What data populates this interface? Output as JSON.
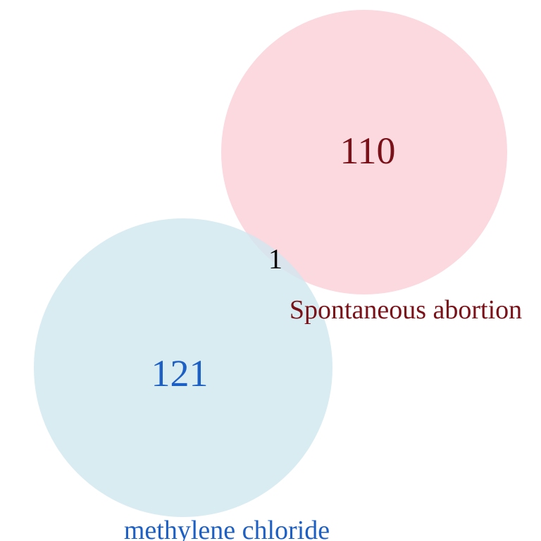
{
  "sets": [
    {
      "name": "Spontaneous abortion",
      "only_count": "110",
      "fill_color": "#fcd6dd",
      "label_color": "#7a1018"
    },
    {
      "name": "methylene chloride",
      "only_count": "121",
      "fill_color": "#cfe7ef",
      "label_color": "#1c5fc5"
    }
  ],
  "overlap": {
    "count": "1",
    "color": "#000000"
  }
}
